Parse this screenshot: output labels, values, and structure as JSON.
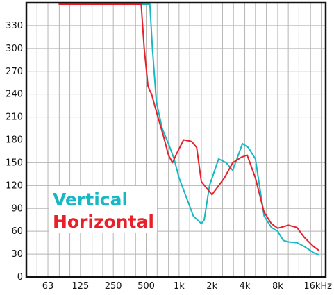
{
  "chart_data": {
    "type": "line",
    "title": "",
    "xlabel": "",
    "ylabel": "",
    "x_scale": "log",
    "xlim": [
      40,
      22000
    ],
    "ylim": [
      0,
      360
    ],
    "grid": true,
    "legend_position": "bottom-left",
    "y_ticks": [
      0,
      30,
      60,
      90,
      120,
      150,
      180,
      210,
      240,
      270,
      300,
      330
    ],
    "y_tick_labels": [
      "0",
      "30",
      "60",
      "90",
      "120",
      "150",
      "180",
      "210",
      "240",
      "270",
      "300",
      "330"
    ],
    "x_ticks": [
      63,
      125,
      250,
      500,
      1000,
      2000,
      4000,
      8000,
      16000
    ],
    "x_tick_labels": [
      "63",
      "125",
      "250",
      "500",
      "1k",
      "2k",
      "4k",
      "8k",
      "16kHz"
    ],
    "x_minor_grid": [
      50,
      80,
      100,
      160,
      200,
      315,
      400,
      630,
      800,
      1250,
      1600,
      2500,
      3150,
      5000,
      6300,
      10000,
      12500,
      20000
    ],
    "series": [
      {
        "name": "Vertical",
        "color": "#17b8c4",
        "points": [
          [
            80,
            360
          ],
          [
            150,
            360
          ],
          [
            300,
            360
          ],
          [
            540,
            360
          ],
          [
            570,
            300
          ],
          [
            620,
            230
          ],
          [
            700,
            195
          ],
          [
            800,
            175
          ],
          [
            900,
            155
          ],
          [
            1000,
            130
          ],
          [
            1200,
            100
          ],
          [
            1350,
            80
          ],
          [
            1600,
            70
          ],
          [
            1700,
            75
          ],
          [
            1900,
            120
          ],
          [
            2300,
            155
          ],
          [
            2700,
            150
          ],
          [
            3100,
            140
          ],
          [
            3800,
            175
          ],
          [
            4300,
            170
          ],
          [
            5000,
            155
          ],
          [
            6000,
            80
          ],
          [
            7000,
            65
          ],
          [
            8000,
            60
          ],
          [
            9000,
            48
          ],
          [
            10000,
            46
          ],
          [
            12000,
            45
          ],
          [
            14000,
            40
          ],
          [
            17000,
            32
          ],
          [
            19000,
            29
          ]
        ]
      },
      {
        "name": "Horizontal",
        "color": "#e8202a",
        "points": [
          [
            80,
            360
          ],
          [
            150,
            360
          ],
          [
            300,
            360
          ],
          [
            450,
            360
          ],
          [
            480,
            300
          ],
          [
            520,
            250
          ],
          [
            560,
            240
          ],
          [
            640,
            210
          ],
          [
            720,
            185
          ],
          [
            800,
            160
          ],
          [
            870,
            150
          ],
          [
            950,
            162
          ],
          [
            1100,
            180
          ],
          [
            1300,
            178
          ],
          [
            1450,
            170
          ],
          [
            1600,
            125
          ],
          [
            2000,
            108
          ],
          [
            2600,
            130
          ],
          [
            3100,
            150
          ],
          [
            3700,
            157
          ],
          [
            4200,
            160
          ],
          [
            5000,
            130
          ],
          [
            6000,
            85
          ],
          [
            7000,
            70
          ],
          [
            8000,
            64
          ],
          [
            9000,
            66
          ],
          [
            10000,
            68
          ],
          [
            12000,
            65
          ],
          [
            14000,
            52
          ],
          [
            17000,
            40
          ],
          [
            19000,
            35
          ]
        ]
      }
    ]
  }
}
